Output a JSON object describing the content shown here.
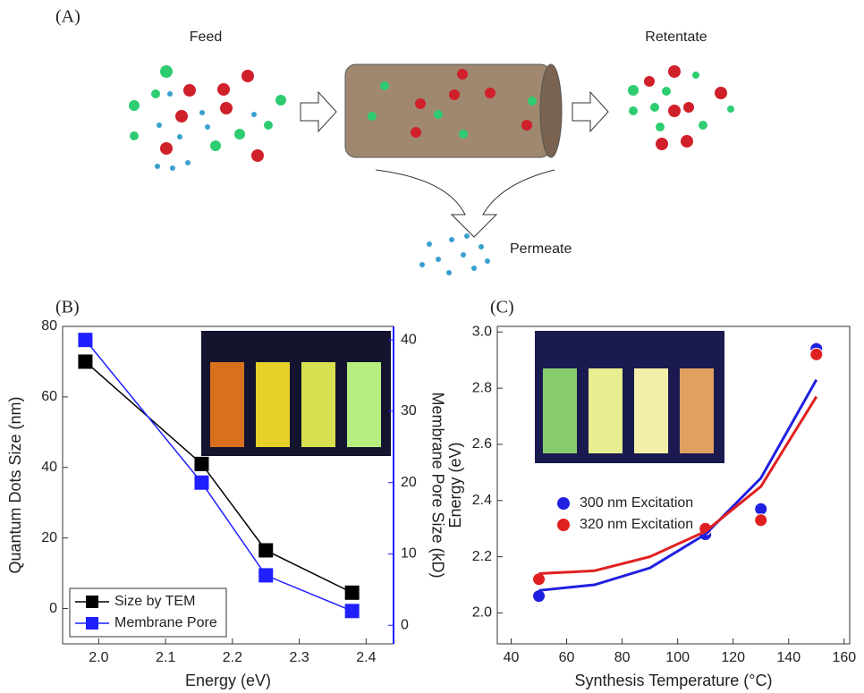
{
  "diagram": {
    "label": "(A)",
    "feed": "Feed",
    "retentate": "Retentate",
    "permeate": "Permeate"
  },
  "chart_data": [
    {
      "type": "line",
      "panel": "(B)",
      "xlabel": "Energy (eV)",
      "ylabel": "Quantum Dots Size (nm)",
      "y2label": "Membrane Pore Size (kD)",
      "xlim": [
        1.946,
        2.441
      ],
      "xticks": [
        {
          "value": 2,
          "label": "2.0"
        },
        2.1,
        2.2,
        2.3,
        2.4
      ],
      "ylim": [
        -10,
        80
      ],
      "yticks": [
        0,
        20,
        40,
        60,
        80
      ],
      "y2lim": [
        -2.6,
        41.9
      ],
      "y2ticks": [
        0,
        10,
        20,
        30,
        40
      ],
      "legend": "lower left",
      "series": [
        {
          "name": "Size by TEM",
          "color": "#000000",
          "marker": "square",
          "x": [
            1.98,
            2.154,
            2.25,
            2.379
          ],
          "values": [
            70,
            41,
            16.5,
            4.5
          ]
        },
        {
          "name": "Membrane Pore",
          "color": "#1f1fff",
          "marker": "square",
          "axis": "y2",
          "x": [
            1.98,
            2.154,
            2.25,
            2.379
          ],
          "values": [
            40,
            20,
            7,
            2
          ]
        }
      ]
    },
    {
      "type": "scatter",
      "panel": "(C)",
      "xlabel": "Synthesis Temperature (°C)",
      "ylabel": "Energy (eV)",
      "xlim": [
        35,
        162
      ],
      "xticks": [
        40,
        60,
        80,
        100,
        120,
        140,
        160
      ],
      "ylim": [
        1.89,
        3.02
      ],
      "yticks": [
        {
          "value": 2,
          "label": "2.0"
        },
        2.2,
        2.4,
        2.6,
        2.8,
        {
          "value": 3,
          "label": "3.0"
        }
      ],
      "legend": "center",
      "series": [
        {
          "name": "300 nm Excitation",
          "color": "#2020e0",
          "marker": "circle",
          "x": [
            50,
            110,
            130,
            150
          ],
          "values": [
            2.06,
            2.28,
            2.37,
            2.94
          ]
        },
        {
          "name": "320 nm Excitation",
          "color": "#e02020",
          "marker": "circle",
          "x": [
            50,
            110,
            130,
            150
          ],
          "values": [
            2.12,
            2.3,
            2.33,
            2.92
          ]
        },
        {
          "color": "#2020e0",
          "marker": "none",
          "x": [
            50,
            70,
            90,
            110,
            130,
            150
          ],
          "values": [
            2.08,
            2.1,
            2.16,
            2.28,
            2.48,
            2.83
          ]
        },
        {
          "color": "#e02020",
          "marker": "none",
          "x": [
            50,
            70,
            90,
            110,
            130,
            150
          ],
          "values": [
            2.14,
            2.15,
            2.2,
            2.29,
            2.45,
            2.77
          ]
        }
      ]
    }
  ]
}
